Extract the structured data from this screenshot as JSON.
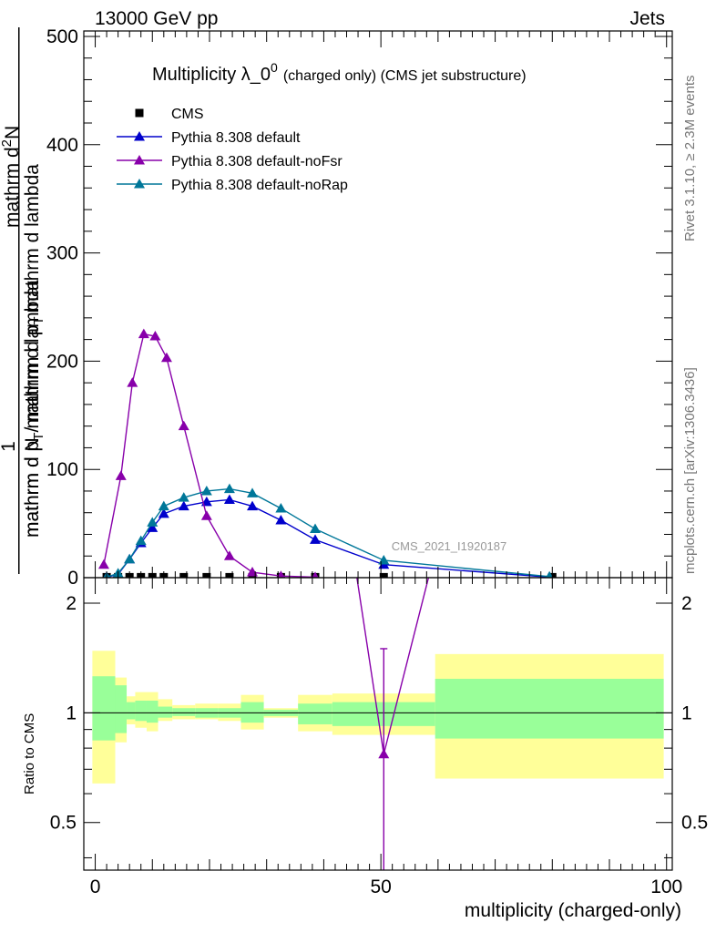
{
  "header": {
    "left": "13000 GeV pp",
    "right": "Jets"
  },
  "side": {
    "rivet": "Rivet 3.1.10, ≥ 2.3M events",
    "mcplots": "mcplots.cern.ch [arXiv:1306.3436]"
  },
  "main": {
    "title": "Multiplicity λ_0",
    "title_sup": "0",
    "title_note": "(charged only) (CMS jet substructure)",
    "watermark": "CMS_2021_I1920187",
    "ylabel_num": "1",
    "ylabel_den": "mathrm d N / mathrm d p",
    "ylabel_den_sub": "T",
    "ylabel_den_rest": "mathrm d lambda",
    "ylabel_num_part": "mathrm d",
    "ylabel_num_sup": "2",
    "ylabel_num_N": "N",
    "ylabel_num2": "mathrm d p",
    "ylabel_num2_sub": "T",
    "ylabel_num2_rest": "mathrm d lambda"
  },
  "ratio": {
    "ylabel": "Ratio to CMS"
  },
  "xaxis": {
    "label": "multiplicity (charged-only)"
  },
  "chart_data": [
    {
      "type": "line",
      "panel": "main",
      "xlim": [
        -2,
        101
      ],
      "ylim": [
        0,
        505
      ],
      "yticks": [
        0,
        100,
        200,
        300,
        400,
        500
      ],
      "yticklabels": [
        "0",
        "100",
        "200",
        "300",
        "400",
        "500"
      ],
      "legend_placement": "top-left",
      "series": [
        {
          "name": "CMS",
          "color": "#000000",
          "marker": "square",
          "x": [
            2,
            4,
            6,
            8,
            10,
            12,
            15.5,
            19.5,
            23.5,
            27.5,
            32.5,
            38.5,
            50.5,
            80
          ],
          "y": [
            0.5,
            0.5,
            0.5,
            0.5,
            0.5,
            0.5,
            0.5,
            0.5,
            0.5,
            0.5,
            0.5,
            0.5,
            0.5,
            0.5
          ]
        },
        {
          "name": "Pythia 8.308 default",
          "color": "#0000cc",
          "marker": "triangle",
          "x": [
            2,
            4,
            6,
            8,
            10,
            12,
            15.5,
            19.5,
            23.5,
            27.5,
            32.5,
            38.5,
            50.5,
            79.5
          ],
          "y": [
            0.5,
            3,
            17,
            32,
            46,
            59,
            66,
            70,
            72,
            66,
            53,
            35,
            12,
            0.5
          ]
        },
        {
          "name": "Pythia 8.308 default-noFsr",
          "color": "#8800aa",
          "marker": "triangle",
          "x": [
            1.5,
            4.5,
            6.5,
            8.5,
            10.5,
            12.5,
            15.5,
            19.5,
            23.5,
            27.5,
            32.5,
            38.5
          ],
          "y": [
            12,
            94,
            180,
            225,
            223,
            203,
            140,
            57,
            20,
            5,
            1.5,
            0.5
          ]
        },
        {
          "name": "Pythia 8.308 default-noRap",
          "color": "#007799",
          "marker": "triangle",
          "x": [
            2,
            4,
            6,
            8,
            10,
            12,
            15.5,
            19.5,
            23.5,
            27.5,
            32.5,
            38.5,
            50.5,
            79.5
          ],
          "y": [
            0.5,
            4,
            17,
            34,
            51,
            66,
            74,
            80,
            82,
            78,
            64,
            45,
            16,
            1
          ]
        }
      ]
    },
    {
      "type": "area",
      "panel": "ratio",
      "xlim": [
        -2,
        101
      ],
      "ylim": [
        0.37,
        2.35
      ],
      "ylog": true,
      "yticks": [
        0.5,
        1,
        2
      ],
      "yticklabels": [
        "0.5",
        "1",
        "2"
      ],
      "xticks": [
        0,
        50,
        100
      ],
      "xticklabels": [
        "0",
        "50",
        "100"
      ],
      "bands": [
        {
          "x0": -0.5,
          "x1": 3.5,
          "total": [
            0.64,
            1.48
          ],
          "stat": [
            0.84,
            1.26
          ]
        },
        {
          "x0": 3.5,
          "x1": 5.5,
          "total": [
            0.83,
            1.25
          ],
          "stat": [
            0.88,
            1.19
          ]
        },
        {
          "x0": 5.5,
          "x1": 7,
          "total": [
            0.93,
            1.11
          ],
          "stat": [
            0.96,
            1.07
          ]
        },
        {
          "x0": 7,
          "x1": 9,
          "total": [
            0.91,
            1.14
          ],
          "stat": [
            0.95,
            1.08
          ]
        },
        {
          "x0": 9,
          "x1": 11,
          "total": [
            0.89,
            1.14
          ],
          "stat": [
            0.94,
            1.08
          ]
        },
        {
          "x0": 11,
          "x1": 13.5,
          "total": [
            0.95,
            1.09
          ],
          "stat": [
            0.97,
            1.04
          ]
        },
        {
          "x0": 13.5,
          "x1": 17.5,
          "total": [
            0.96,
            1.05
          ],
          "stat": [
            0.98,
            1.03
          ]
        },
        {
          "x0": 17.5,
          "x1": 21.5,
          "total": [
            0.96,
            1.06
          ],
          "stat": [
            0.97,
            1.03
          ]
        },
        {
          "x0": 21.5,
          "x1": 25.5,
          "total": [
            0.95,
            1.06
          ],
          "stat": [
            0.97,
            1.03
          ]
        },
        {
          "x0": 25.5,
          "x1": 29.5,
          "total": [
            0.9,
            1.12
          ],
          "stat": [
            0.94,
            1.07
          ]
        },
        {
          "x0": 29.5,
          "x1": 35.5,
          "total": [
            0.97,
            1.03
          ],
          "stat": [
            0.98,
            1.02
          ]
        },
        {
          "x0": 35.5,
          "x1": 41.5,
          "total": [
            0.89,
            1.12
          ],
          "stat": [
            0.93,
            1.06
          ]
        },
        {
          "x0": 41.5,
          "x1": 59.5,
          "total": [
            0.87,
            1.13
          ],
          "stat": [
            0.92,
            1.07
          ]
        },
        {
          "x0": 59.5,
          "x1": 99.5,
          "total": [
            0.66,
            1.45
          ],
          "stat": [
            0.85,
            1.24
          ]
        }
      ],
      "lines": [
        {
          "name": "Pythia 8.308 default-noFsr",
          "color": "#8800aa",
          "x": [
            44.5,
            50.5,
            60.5
          ],
          "y": [
            3.2,
            0.77,
            3.2
          ],
          "errorbar": {
            "x": 50.5,
            "y0": 0.37,
            "y1": 1.5
          }
        }
      ]
    }
  ]
}
